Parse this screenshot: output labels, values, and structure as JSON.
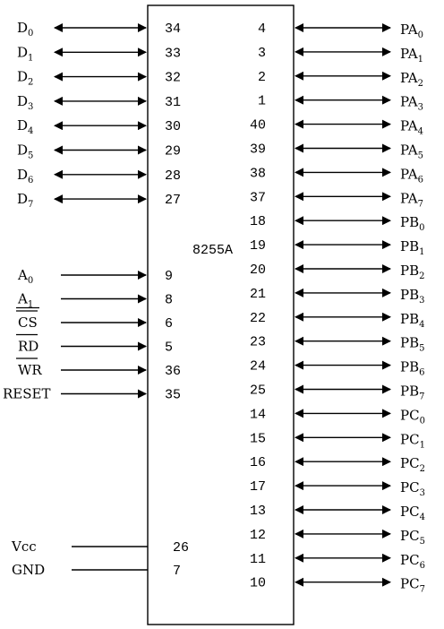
{
  "chip_name": "8255A",
  "left_bidir": [
    {
      "label": "D",
      "sub": "0",
      "pin": "34"
    },
    {
      "label": "D",
      "sub": "1",
      "pin": "33"
    },
    {
      "label": "D",
      "sub": "2",
      "pin": "32"
    },
    {
      "label": "D",
      "sub": "3",
      "pin": "31"
    },
    {
      "label": "D",
      "sub": "4",
      "pin": "30"
    },
    {
      "label": "D",
      "sub": "5",
      "pin": "29"
    },
    {
      "label": "D",
      "sub": "6",
      "pin": "28"
    },
    {
      "label": "D",
      "sub": "7",
      "pin": "27"
    }
  ],
  "left_inputs": [
    {
      "label": "A",
      "sub": "0",
      "overline": false,
      "pin": "9"
    },
    {
      "label": "A",
      "sub": "1",
      "overline": false,
      "pin": "8"
    },
    {
      "label": "CS",
      "sub": "",
      "overline": true,
      "pin": "6"
    },
    {
      "label": "RD",
      "sub": "",
      "overline": true,
      "pin": "5"
    },
    {
      "label": "WR",
      "sub": "",
      "overline": true,
      "pin": "36"
    },
    {
      "label": "RESET",
      "sub": "",
      "overline": false,
      "pin": "35"
    }
  ],
  "power": [
    {
      "label": "Vcc",
      "pin": "26"
    },
    {
      "label": "GND",
      "pin": "7"
    }
  ],
  "right_pins": [
    {
      "pin": "4",
      "label": "PA",
      "sub": "0"
    },
    {
      "pin": "3",
      "label": "PA",
      "sub": "1"
    },
    {
      "pin": "2",
      "label": "PA",
      "sub": "2"
    },
    {
      "pin": "1",
      "label": "PA",
      "sub": "3"
    },
    {
      "pin": "40",
      "label": "PA",
      "sub": "4"
    },
    {
      "pin": "39",
      "label": "PA",
      "sub": "5"
    },
    {
      "pin": "38",
      "label": "PA",
      "sub": "6"
    },
    {
      "pin": "37",
      "label": "PA",
      "sub": "7"
    },
    {
      "pin": "18",
      "label": "PB",
      "sub": "0"
    },
    {
      "pin": "19",
      "label": "PB",
      "sub": "1"
    },
    {
      "pin": "20",
      "label": "PB",
      "sub": "2"
    },
    {
      "pin": "21",
      "label": "PB",
      "sub": "3"
    },
    {
      "pin": "22",
      "label": "PB",
      "sub": "4"
    },
    {
      "pin": "23",
      "label": "PB",
      "sub": "5"
    },
    {
      "pin": "24",
      "label": "PB",
      "sub": "6"
    },
    {
      "pin": "25",
      "label": "PB",
      "sub": "7"
    },
    {
      "pin": "14",
      "label": "PC",
      "sub": "0"
    },
    {
      "pin": "15",
      "label": "PC",
      "sub": "1"
    },
    {
      "pin": "16",
      "label": "PC",
      "sub": "2"
    },
    {
      "pin": "17",
      "label": "PC",
      "sub": "3"
    },
    {
      "pin": "13",
      "label": "PC",
      "sub": "4"
    },
    {
      "pin": "12",
      "label": "PC",
      "sub": "5"
    },
    {
      "pin": "11",
      "label": "PC",
      "sub": "6"
    },
    {
      "pin": "10",
      "label": "PC",
      "sub": "7"
    }
  ]
}
